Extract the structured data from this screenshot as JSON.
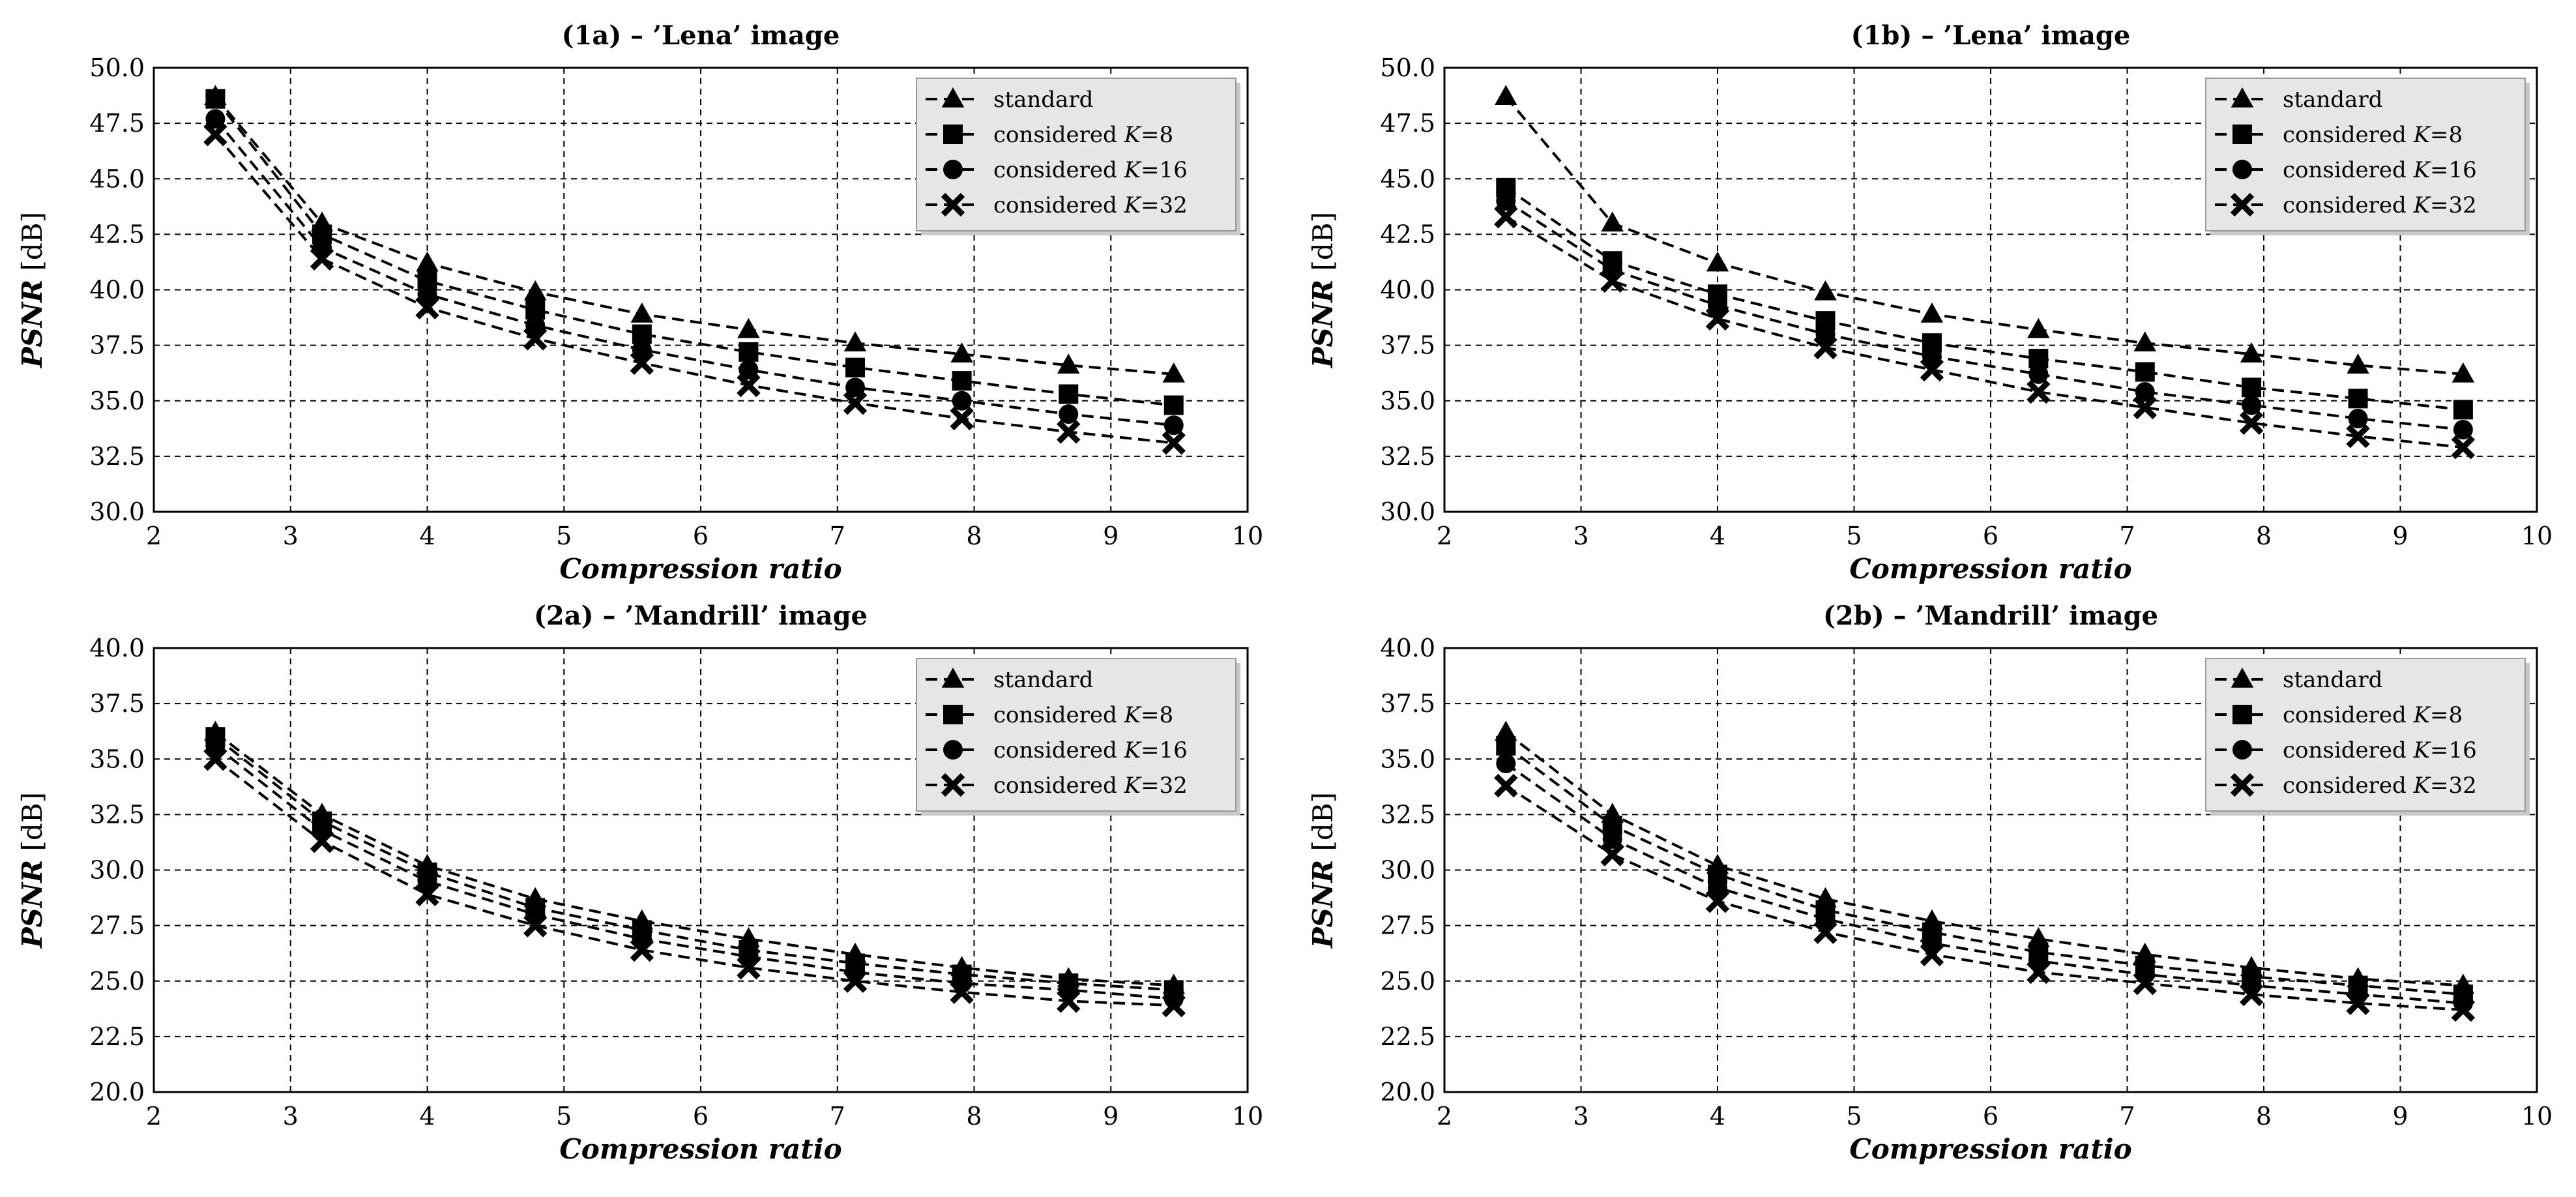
{
  "chart_data": [
    {
      "type": "line",
      "title": "(1a) – ’Lena’ image",
      "xlabel": "Compression ratio",
      "ylabel": "PSNR",
      "ylabel_unit": "[dB]",
      "xlim": [
        2,
        10
      ],
      "ylim": [
        30,
        50
      ],
      "xticks": [
        "2",
        "3",
        "4",
        "5",
        "6",
        "7",
        "8",
        "9",
        "10"
      ],
      "yticks": [
        "30.0",
        "32.5",
        "35.0",
        "37.5",
        "40.0",
        "42.5",
        "45.0",
        "47.5",
        "50.0"
      ],
      "grid": true,
      "legend_position": "top-right",
      "x": [
        2.45,
        3.23,
        4.0,
        4.79,
        5.57,
        6.35,
        7.13,
        7.91,
        8.69,
        9.46
      ],
      "series": [
        {
          "name": "standard",
          "marker": "triangle",
          "values": [
            48.7,
            43.0,
            41.2,
            39.9,
            38.9,
            38.2,
            37.6,
            37.1,
            36.6,
            36.2
          ]
        },
        {
          "name": "considered K=8",
          "marker": "square",
          "values": [
            48.6,
            42.5,
            40.4,
            39.1,
            38.0,
            37.2,
            36.5,
            35.9,
            35.3,
            34.8
          ]
        },
        {
          "name": "considered K=16",
          "marker": "circle",
          "values": [
            47.7,
            41.9,
            39.8,
            38.4,
            37.3,
            36.4,
            35.6,
            35.0,
            34.4,
            33.9
          ]
        },
        {
          "name": "considered K=32",
          "marker": "cross",
          "values": [
            47.0,
            41.4,
            39.2,
            37.8,
            36.7,
            35.7,
            34.9,
            34.2,
            33.6,
            33.1
          ]
        }
      ]
    },
    {
      "type": "line",
      "title": "(1b) – ’Lena’ image",
      "xlabel": "Compression ratio",
      "ylabel": "PSNR",
      "ylabel_unit": "[dB]",
      "xlim": [
        2,
        10
      ],
      "ylim": [
        30,
        50
      ],
      "xticks": [
        "2",
        "3",
        "4",
        "5",
        "6",
        "7",
        "8",
        "9",
        "10"
      ],
      "yticks": [
        "30.0",
        "32.5",
        "35.0",
        "37.5",
        "40.0",
        "42.5",
        "45.0",
        "47.5",
        "50.0"
      ],
      "grid": true,
      "legend_position": "top-right",
      "x": [
        2.45,
        3.23,
        4.0,
        4.79,
        5.57,
        6.35,
        7.13,
        7.91,
        8.69,
        9.46
      ],
      "series": [
        {
          "name": "standard",
          "marker": "triangle",
          "values": [
            48.7,
            43.0,
            41.2,
            39.9,
            38.9,
            38.2,
            37.6,
            37.1,
            36.6,
            36.2
          ]
        },
        {
          "name": "considered K=8",
          "marker": "square",
          "values": [
            44.6,
            41.3,
            39.8,
            38.6,
            37.6,
            36.9,
            36.3,
            35.6,
            35.1,
            34.6
          ]
        },
        {
          "name": "considered K=16",
          "marker": "circle",
          "values": [
            44.0,
            40.9,
            39.3,
            38.0,
            37.0,
            36.2,
            35.4,
            34.8,
            34.2,
            33.7
          ]
        },
        {
          "name": "considered K=32",
          "marker": "cross",
          "values": [
            43.3,
            40.4,
            38.7,
            37.4,
            36.4,
            35.4,
            34.7,
            34.0,
            33.4,
            32.9
          ]
        }
      ]
    },
    {
      "type": "line",
      "title": "(2a) – ’Mandrill’ image",
      "xlabel": "Compression ratio",
      "ylabel": "PSNR",
      "ylabel_unit": "[dB]",
      "xlim": [
        2,
        10
      ],
      "ylim": [
        20,
        40
      ],
      "xticks": [
        "2",
        "3",
        "4",
        "5",
        "6",
        "7",
        "8",
        "9",
        "10"
      ],
      "yticks": [
        "20.0",
        "22.5",
        "25.0",
        "27.5",
        "30.0",
        "32.5",
        "35.0",
        "37.5",
        "40.0"
      ],
      "grid": true,
      "legend_position": "top-right",
      "x": [
        2.45,
        3.23,
        4.0,
        4.79,
        5.57,
        6.35,
        7.13,
        7.91,
        8.69,
        9.46
      ],
      "series": [
        {
          "name": "standard",
          "marker": "triangle",
          "values": [
            36.2,
            32.5,
            30.2,
            28.7,
            27.7,
            26.9,
            26.2,
            25.6,
            25.1,
            24.8
          ]
        },
        {
          "name": "considered K=8",
          "marker": "square",
          "values": [
            36.0,
            32.2,
            29.9,
            28.3,
            27.3,
            26.4,
            25.8,
            25.3,
            24.9,
            24.6
          ]
        },
        {
          "name": "considered K=16",
          "marker": "circle",
          "values": [
            35.6,
            31.8,
            29.5,
            28.0,
            26.9,
            26.1,
            25.4,
            24.9,
            24.6,
            24.2
          ]
        },
        {
          "name": "considered K=32",
          "marker": "cross",
          "values": [
            35.0,
            31.3,
            28.9,
            27.5,
            26.4,
            25.6,
            25.0,
            24.5,
            24.1,
            23.9
          ]
        }
      ]
    },
    {
      "type": "line",
      "title": "(2b) – ’Mandrill’ image",
      "xlabel": "Compression ratio",
      "ylabel": "PSNR",
      "ylabel_unit": "[dB]",
      "xlim": [
        2,
        10
      ],
      "ylim": [
        20,
        40
      ],
      "xticks": [
        "2",
        "3",
        "4",
        "5",
        "6",
        "7",
        "8",
        "9",
        "10"
      ],
      "yticks": [
        "20.0",
        "22.5",
        "25.0",
        "27.5",
        "30.0",
        "32.5",
        "35.0",
        "37.5",
        "40.0"
      ],
      "grid": true,
      "legend_position": "top-right",
      "x": [
        2.45,
        3.23,
        4.0,
        4.79,
        5.57,
        6.35,
        7.13,
        7.91,
        8.69,
        9.46
      ],
      "series": [
        {
          "name": "standard",
          "marker": "triangle",
          "values": [
            36.2,
            32.5,
            30.2,
            28.7,
            27.7,
            26.9,
            26.2,
            25.6,
            25.1,
            24.8
          ]
        },
        {
          "name": "considered K=8",
          "marker": "square",
          "values": [
            35.6,
            32.0,
            29.8,
            28.2,
            27.2,
            26.3,
            25.7,
            25.2,
            24.8,
            24.4
          ]
        },
        {
          "name": "considered K=16",
          "marker": "circle",
          "values": [
            34.8,
            31.4,
            29.2,
            27.8,
            26.7,
            25.9,
            25.3,
            24.8,
            24.4,
            24.0
          ]
        },
        {
          "name": "considered K=32",
          "marker": "cross",
          "values": [
            33.8,
            30.7,
            28.6,
            27.2,
            26.2,
            25.4,
            24.9,
            24.4,
            24.0,
            23.7
          ]
        }
      ]
    }
  ]
}
